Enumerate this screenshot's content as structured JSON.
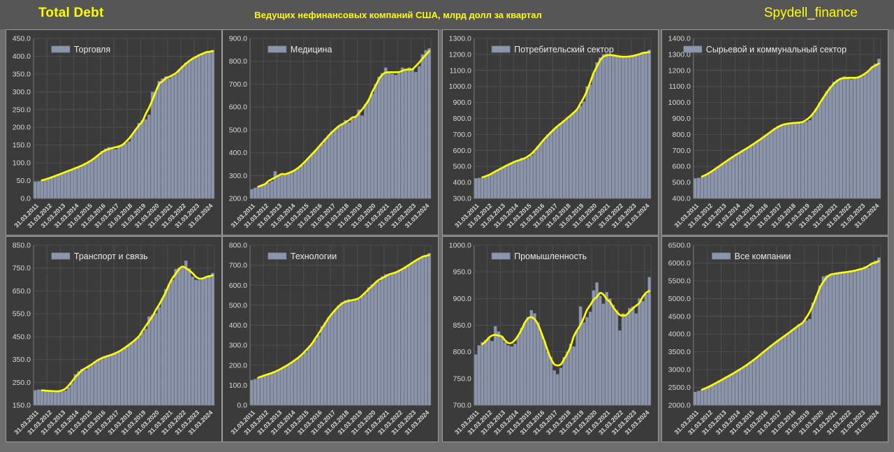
{
  "header": {
    "title": "Total Debt",
    "subtitle": "Ведущих нефинансовых компаний США, млрд долл за квартал",
    "watermark": "Spydell_finance"
  },
  "colors": {
    "page_bg": "#6e6e6e",
    "header_bg": "#565656",
    "accent": "#ffff00",
    "panel_bg": "#3b3b3b",
    "panel_border": "#9c9c9c",
    "gridline": "#4e4e4e",
    "axis_line": "#7a7a7a",
    "bar_fill": "#8c95aa",
    "bar_edge": "#7b849b",
    "trend_line": "#ffff00",
    "axis_text": "#d9d9d9",
    "legend_text": "#eaeaea"
  },
  "chart_data": [
    {
      "type": "bar",
      "legend": "Торговля",
      "overlay_line": "smoothed-trend-yellow",
      "grid": true,
      "ylim": [
        0,
        450
      ],
      "ystep": 50,
      "categories": [
        "31.03.2011",
        "31.03.2012",
        "31.03.2013",
        "31.03.2014",
        "31.03.2015",
        "31.03.2016",
        "31.03.2017",
        "31.03.2018",
        "31.03.2019",
        "31.03.2020",
        "31.03.2021",
        "31.03.2022",
        "31.03.2023",
        "31.03.2024"
      ],
      "values": [
        47,
        48,
        50,
        53,
        56,
        60,
        63,
        67,
        70,
        74,
        78,
        82,
        85,
        88,
        92,
        97,
        102,
        108,
        115,
        120,
        133,
        140,
        144,
        139,
        138,
        147,
        152,
        155,
        160,
        180,
        195,
        212,
        220,
        222,
        235,
        300,
        300,
        330,
        337,
        343,
        337,
        343,
        350,
        360,
        372,
        382,
        388,
        393,
        398,
        405,
        408,
        412,
        413,
        417
      ]
    },
    {
      "type": "bar",
      "legend": "Медицина",
      "overlay_line": "smoothed-trend-yellow",
      "grid": true,
      "ylim": [
        200,
        900
      ],
      "ystep": 100,
      "categories": [
        "31.03.2011",
        "31.03.2012",
        "31.03.2013",
        "31.03.2014",
        "31.03.2015",
        "31.03.2016",
        "31.03.2017",
        "31.03.2018",
        "31.03.2019",
        "31.03.2020",
        "31.03.2021",
        "31.03.2022",
        "31.03.2023",
        "31.03.2024"
      ],
      "values": [
        240,
        246,
        252,
        258,
        262,
        268,
        275,
        318,
        298,
        302,
        306,
        310,
        315,
        322,
        332,
        345,
        362,
        378,
        395,
        410,
        422,
        438,
        462,
        478,
        492,
        505,
        515,
        528,
        542,
        532,
        548,
        558,
        588,
        562,
        612,
        632,
        658,
        700,
        732,
        748,
        772,
        755,
        745,
        740,
        748,
        772,
        760,
        772,
        765,
        752,
        778,
        830,
        848,
        856
      ]
    },
    {
      "type": "bar",
      "legend": "Потребительский сектор",
      "overlay_line": "smoothed-trend-yellow",
      "grid": true,
      "ylim": [
        300,
        1300
      ],
      "ystep": 100,
      "categories": [
        "31.03.2011",
        "31.03.2012",
        "31.03.2013",
        "31.03.2014",
        "31.03.2015",
        "31.03.2016",
        "31.03.2017",
        "31.03.2018",
        "31.03.2019",
        "31.03.2020",
        "31.03.2021",
        "31.03.2022",
        "31.03.2023",
        "31.03.2024"
      ],
      "values": [
        425,
        428,
        426,
        432,
        448,
        458,
        468,
        478,
        492,
        502,
        512,
        522,
        528,
        538,
        552,
        545,
        555,
        568,
        598,
        628,
        648,
        668,
        698,
        718,
        735,
        748,
        772,
        788,
        798,
        818,
        838,
        855,
        878,
        905,
        1000,
        1010,
        1080,
        1150,
        1180,
        1200,
        1205,
        1195,
        1190,
        1192,
        1190,
        1185,
        1178,
        1182,
        1192,
        1198,
        1202,
        1205,
        1212,
        1228
      ]
    },
    {
      "type": "bar",
      "legend": "Сырьевой и коммунальный сектор",
      "overlay_line": "smoothed-trend-yellow",
      "grid": true,
      "ylim": [
        400,
        1400
      ],
      "ystep": 100,
      "categories": [
        "31.03.2011",
        "31.03.2012",
        "31.03.2013",
        "31.03.2014",
        "31.03.2015",
        "31.03.2016",
        "31.03.2017",
        "31.03.2018",
        "31.03.2019",
        "31.03.2020",
        "31.03.2021",
        "31.03.2022",
        "31.03.2023",
        "31.03.2024"
      ],
      "values": [
        525,
        528,
        532,
        542,
        558,
        572,
        588,
        602,
        618,
        632,
        648,
        662,
        678,
        688,
        700,
        714,
        728,
        742,
        758,
        772,
        788,
        802,
        820,
        838,
        852,
        862,
        868,
        870,
        868,
        872,
        875,
        878,
        878,
        888,
        928,
        962,
        998,
        1030,
        1068,
        1098,
        1128,
        1140,
        1152,
        1162,
        1158,
        1145,
        1150,
        1155,
        1160,
        1175,
        1195,
        1215,
        1242,
        1272
      ]
    },
    {
      "type": "bar",
      "legend": "Транспорт и связь",
      "overlay_line": "smoothed-trend-yellow",
      "grid": true,
      "ylim": [
        150,
        850
      ],
      "ystep": 100,
      "categories": [
        "31.03.2011",
        "31.03.2012",
        "31.03.2013",
        "31.03.2014",
        "31.03.2015",
        "31.03.2016",
        "31.03.2017",
        "31.03.2018",
        "31.03.2019",
        "31.03.2020",
        "31.03.2021",
        "31.03.2022",
        "31.03.2023",
        "31.03.2024"
      ],
      "values": [
        215,
        218,
        216,
        214,
        212,
        210,
        212,
        211,
        210,
        213,
        228,
        248,
        285,
        298,
        308,
        304,
        318,
        332,
        342,
        352,
        358,
        364,
        368,
        370,
        374,
        383,
        394,
        404,
        414,
        424,
        438,
        448,
        468,
        484,
        538,
        545,
        552,
        578,
        618,
        658,
        678,
        698,
        745,
        752,
        755,
        782,
        748,
        712,
        698,
        697,
        703,
        708,
        718,
        728
      ]
    },
    {
      "type": "bar",
      "legend": "Технологии",
      "overlay_line": "smoothed-trend-yellow",
      "grid": true,
      "ylim": [
        0,
        800
      ],
      "ystep": 100,
      "categories": [
        "31.03.2011",
        "31.03.2012",
        "31.03.2013",
        "31.03.2014",
        "31.03.2015",
        "31.03.2016",
        "31.03.2017",
        "31.03.2018",
        "31.03.2019",
        "31.03.2020",
        "31.03.2021",
        "31.03.2022",
        "31.03.2023",
        "31.03.2024"
      ],
      "values": [
        125,
        130,
        139,
        147,
        150,
        154,
        160,
        167,
        174,
        184,
        194,
        204,
        214,
        224,
        239,
        254,
        264,
        289,
        309,
        329,
        349,
        394,
        414,
        439,
        459,
        479,
        499,
        514,
        524,
        529,
        519,
        524,
        529,
        544,
        559,
        589,
        604,
        614,
        619,
        644,
        654,
        649,
        659,
        664,
        669,
        679,
        689,
        704,
        714,
        724,
        734,
        744,
        749,
        760
      ]
    },
    {
      "type": "bar",
      "legend": "Промышленность",
      "overlay_line": "smoothed-trend-yellow",
      "grid": true,
      "ylim": [
        700,
        1000
      ],
      "ystep": 50,
      "categories": [
        "31.03.2011",
        "31.03.2012",
        "31.03.2013",
        "31.03.2014",
        "31.03.2015",
        "31.03.2016",
        "31.03.2017",
        "31.03.2018",
        "31.03.2019",
        "31.03.2020",
        "31.03.2021",
        "31.03.2022",
        "31.03.2023",
        "31.03.2024"
      ],
      "values": [
        795,
        812,
        818,
        822,
        825,
        820,
        848,
        838,
        828,
        818,
        812,
        810,
        815,
        830,
        845,
        855,
        865,
        878,
        872,
        855,
        835,
        820,
        800,
        790,
        765,
        758,
        770,
        790,
        800,
        815,
        810,
        840,
        885,
        855,
        865,
        875,
        915,
        930,
        905,
        890,
        912,
        900,
        888,
        878,
        840,
        872,
        868,
        882,
        885,
        872,
        900,
        895,
        908,
        940
      ]
    },
    {
      "type": "bar",
      "legend": "Все компании",
      "overlay_line": "smoothed-trend-yellow",
      "grid": true,
      "ylim": [
        2000,
        6500
      ],
      "ystep": 500,
      "categories": [
        "31.03.2011",
        "31.03.2012",
        "31.03.2013",
        "31.03.2014",
        "31.03.2015",
        "31.03.2016",
        "31.03.2017",
        "31.03.2018",
        "31.03.2019",
        "31.03.2020",
        "31.03.2021",
        "31.03.2022",
        "31.03.2023",
        "31.03.2024"
      ],
      "values": [
        2370,
        2400,
        2430,
        2470,
        2520,
        2570,
        2620,
        2680,
        2730,
        2780,
        2840,
        2900,
        2950,
        3010,
        3070,
        3140,
        3200,
        3280,
        3360,
        3440,
        3520,
        3600,
        3680,
        3750,
        3830,
        3900,
        3960,
        4030,
        4100,
        4180,
        4280,
        4330,
        4380,
        4420,
        4880,
        5070,
        5360,
        5620,
        5650,
        5680,
        5700,
        5710,
        5720,
        5740,
        5750,
        5760,
        5780,
        5800,
        5820,
        5900,
        5870,
        5960,
        6060,
        6150
      ]
    }
  ]
}
